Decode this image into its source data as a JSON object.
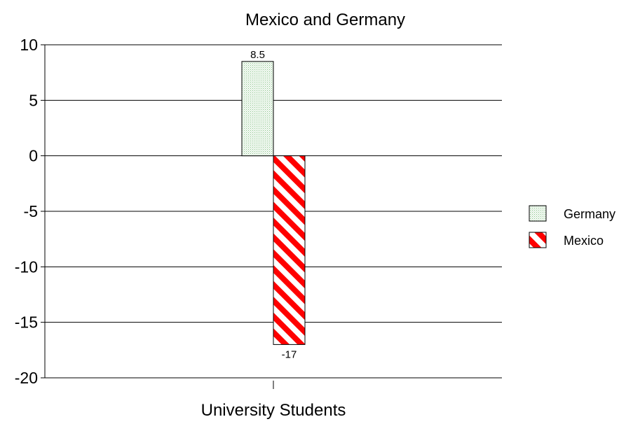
{
  "chart_data": {
    "type": "bar",
    "title": "Mexico and Germany",
    "categories": [
      "University Students"
    ],
    "series": [
      {
        "name": "Germany",
        "values": [
          8.5
        ],
        "labels": [
          "8.5"
        ],
        "color": "#e6f2e6",
        "pattern": "dotted-green"
      },
      {
        "name": "Mexico",
        "values": [
          -17
        ],
        "labels": [
          "-17"
        ],
        "color": "#ff0000",
        "pattern": "red-diagonal-stripes"
      }
    ],
    "yticks": [
      10,
      5,
      0,
      -5,
      -10,
      -15,
      -20
    ],
    "ylim": [
      -20,
      10
    ],
    "grid": true,
    "legend": "right"
  }
}
